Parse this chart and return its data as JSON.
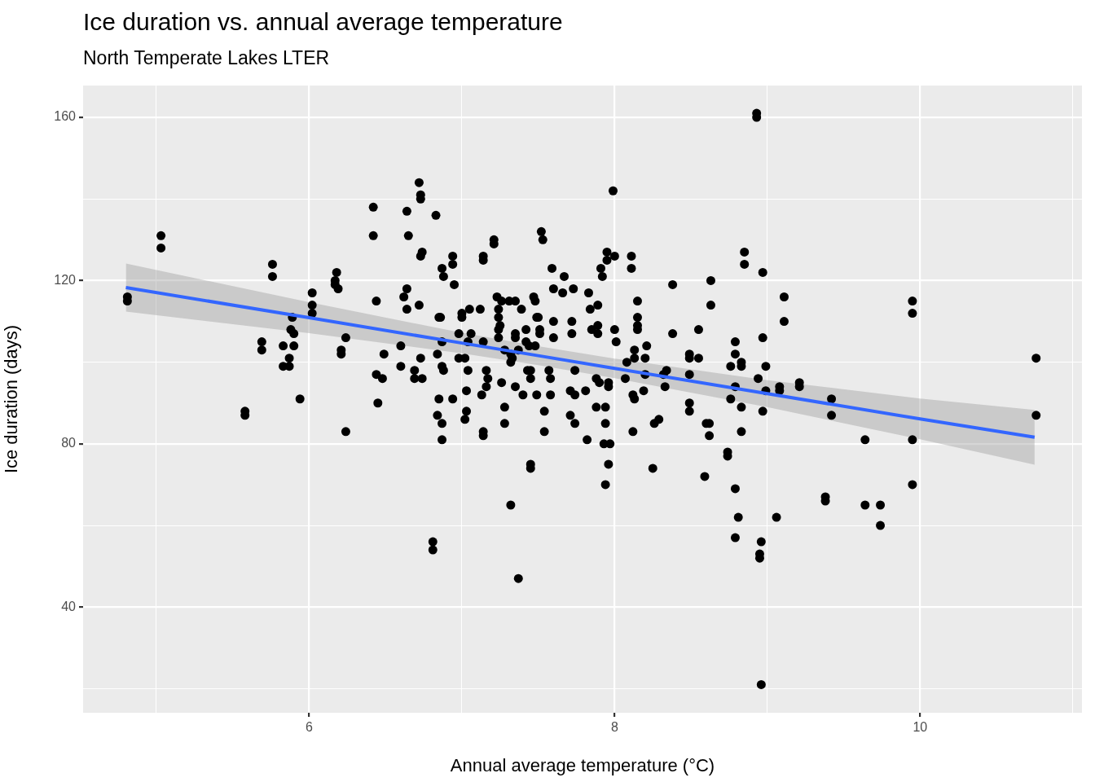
{
  "chart_data": {
    "type": "scatter",
    "title": "Ice duration vs. annual average temperature",
    "subtitle": "North Temperate Lakes LTER",
    "xlabel": "Annual average temperature (°C)",
    "ylabel": "Ice duration (days)",
    "xlim": [
      4.52,
      11.06
    ],
    "ylim": [
      14.1,
      167.8
    ],
    "xticks": [
      {
        "value": 5,
        "label": null
      },
      6,
      {
        "value": 7,
        "label": null
      },
      8,
      {
        "value": 9,
        "label": null
      },
      10,
      {
        "value": 11,
        "label": null
      }
    ],
    "yticks": [
      {
        "value": 20,
        "label": null
      },
      40,
      {
        "value": 60,
        "label": null
      },
      80,
      {
        "value": 100,
        "label": null
      },
      120,
      {
        "value": 140,
        "label": null
      },
      160
    ],
    "grid": true,
    "series": [
      {
        "color": "#000000",
        "marker": "circle",
        "x": [
          4.81,
          4.81,
          5.03,
          5.03,
          5.58,
          5.58,
          5.69,
          5.69,
          5.76,
          5.76,
          5.83,
          5.83,
          5.87,
          5.87,
          5.89,
          5.88,
          5.9,
          5.9,
          5.94,
          6.02,
          6.02,
          6.02,
          6.17,
          6.17,
          6.18,
          6.19,
          6.21,
          6.21,
          6.24,
          6.24,
          6.42,
          6.42,
          6.44,
          6.44,
          6.45,
          6.48,
          6.49,
          6.6,
          6.6,
          6.62,
          6.64,
          6.64,
          6.64,
          6.65,
          6.69,
          6.69,
          6.72,
          6.73,
          6.73,
          6.72,
          6.73,
          6.74,
          6.73,
          6.74,
          6.81,
          6.81,
          6.83,
          6.84,
          6.85,
          6.86,
          6.84,
          6.85,
          6.87,
          6.87,
          6.88,
          6.87,
          6.87,
          6.87,
          6.88,
          6.94,
          6.94,
          6.95,
          6.94,
          6.98,
          6.98,
          7.0,
          7.0,
          7.02,
          7.02,
          7.03,
          7.04,
          7.03,
          7.05,
          7.06,
          7.04,
          7.12,
          7.13,
          7.14,
          7.14,
          7.14,
          7.14,
          7.14,
          7.16,
          7.17,
          7.16,
          7.21,
          7.21,
          7.23,
          7.24,
          7.24,
          7.24,
          7.24,
          7.26,
          7.25,
          7.26,
          7.28,
          7.28,
          7.28,
          7.32,
          7.31,
          7.32,
          7.32,
          7.33,
          7.35,
          7.35,
          7.35,
          7.35,
          7.37,
          7.39,
          7.37,
          7.4,
          7.42,
          7.42,
          7.43,
          7.44,
          7.45,
          7.45,
          7.45,
          7.45,
          7.47,
          7.48,
          7.49,
          7.5,
          7.48,
          7.49,
          7.51,
          7.51,
          7.52,
          7.53,
          7.54,
          7.54,
          7.57,
          7.58,
          7.58,
          7.59,
          7.6,
          7.6,
          7.6,
          7.66,
          7.67,
          7.71,
          7.71,
          7.72,
          7.72,
          7.73,
          7.74,
          7.74,
          7.74,
          7.81,
          7.82,
          7.83,
          7.84,
          7.85,
          7.88,
          7.88,
          7.89,
          7.89,
          7.89,
          7.9,
          7.91,
          7.92,
          7.93,
          7.94,
          7.94,
          7.94,
          7.95,
          7.95,
          7.96,
          7.97,
          7.96,
          7.96,
          7.99,
          8.0,
          8.0,
          8.01,
          8.08,
          8.07,
          8.11,
          8.11,
          8.12,
          8.12,
          8.13,
          8.13,
          8.13,
          8.15,
          8.15,
          8.15,
          8.15,
          8.19,
          8.21,
          8.2,
          8.2,
          8.25,
          8.26,
          8.29,
          8.32,
          8.33,
          8.34,
          8.38,
          8.38,
          8.49,
          8.49,
          8.49,
          8.49,
          8.49,
          8.55,
          8.55,
          8.59,
          8.6,
          8.62,
          8.62,
          8.63,
          8.63,
          8.74,
          8.74,
          8.76,
          8.76,
          8.79,
          8.79,
          8.79,
          8.79,
          8.79,
          8.81,
          8.83,
          8.83,
          8.83,
          8.83,
          8.85,
          8.85,
          8.93,
          8.93,
          8.94,
          8.96,
          8.95,
          8.95,
          8.96,
          8.97,
          8.97,
          8.97,
          8.99,
          8.99,
          9.06,
          9.08,
          9.08,
          9.11,
          9.11,
          9.21,
          9.21,
          9.38,
          9.38,
          9.42,
          9.42,
          9.64,
          9.64,
          9.74,
          9.74,
          9.95,
          9.95,
          9.95,
          9.95,
          10.76,
          10.76
        ],
        "values": [
          116,
          115,
          131,
          128,
          88,
          87,
          105,
          103,
          124,
          121,
          104,
          99,
          101,
          99,
          111,
          108,
          107,
          104,
          91,
          117,
          114,
          112,
          120,
          119,
          122,
          118,
          103,
          102,
          106,
          83,
          138,
          131,
          115,
          97,
          90,
          96,
          102,
          99,
          104,
          116,
          118,
          113,
          137,
          131,
          98,
          96,
          144,
          141,
          140,
          114,
          101,
          96,
          126,
          127,
          56,
          54,
          136,
          102,
          111,
          111,
          87,
          91,
          105,
          123,
          121,
          85,
          81,
          99,
          98,
          126,
          124,
          119,
          91,
          107,
          101,
          112,
          111,
          101,
          86,
          88,
          98,
          93,
          113,
          107,
          105,
          113,
          92,
          126,
          125,
          105,
          83,
          82,
          98,
          96,
          94,
          130,
          129,
          116,
          113,
          111,
          108,
          106,
          115,
          109,
          95,
          89,
          85,
          103,
          102,
          115,
          65,
          100,
          101,
          115,
          94,
          106,
          107,
          47,
          113,
          103,
          92,
          108,
          105,
          98,
          104,
          75,
          74,
          96,
          98,
          116,
          115,
          111,
          111,
          104,
          92,
          108,
          107,
          132,
          130,
          88,
          83,
          98,
          96,
          92,
          123,
          118,
          106,
          110,
          117,
          121,
          93,
          87,
          110,
          107,
          118,
          85,
          98,
          92,
          93,
          81,
          117,
          113,
          108,
          96,
          89,
          114,
          109,
          107,
          95,
          123,
          121,
          80,
          70,
          85,
          89,
          125,
          127,
          94,
          80,
          75,
          95,
          142,
          126,
          108,
          105,
          100,
          96,
          126,
          123,
          83,
          92,
          91,
          103,
          101,
          115,
          108,
          109,
          111,
          93,
          104,
          101,
          97,
          74,
          85,
          86,
          97,
          94,
          98,
          107,
          119,
          102,
          101,
          97,
          90,
          88,
          108,
          101,
          72,
          85,
          85,
          82,
          120,
          114,
          78,
          77,
          91,
          99,
          69,
          57,
          105,
          102,
          94,
          62,
          100,
          99,
          89,
          83,
          127,
          124,
          161,
          160,
          96,
          56,
          53,
          52,
          21,
          122,
          106,
          88,
          99,
          93,
          62,
          94,
          93,
          116,
          110,
          95,
          94,
          67,
          66,
          91,
          87,
          65,
          81,
          65,
          60,
          115,
          112,
          81,
          70,
          101,
          87
        ]
      },
      {
        "type": "line",
        "color": "#3366ff",
        "x": [
          4.8,
          6,
          7,
          7.5,
          8,
          9,
          10,
          10.75
        ],
        "values": [
          118.3,
          110.9,
          104.7,
          101.6,
          98.5,
          92.3,
          86.1,
          81.6
        ],
        "lower": [
          112.4,
          107.1,
          102.2,
          99.3,
          96.1,
          89,
          81.1,
          74.9
        ],
        "upper": [
          124.2,
          114.7,
          107.2,
          103.9,
          100.9,
          95.6,
          91.1,
          88.3
        ]
      }
    ]
  }
}
